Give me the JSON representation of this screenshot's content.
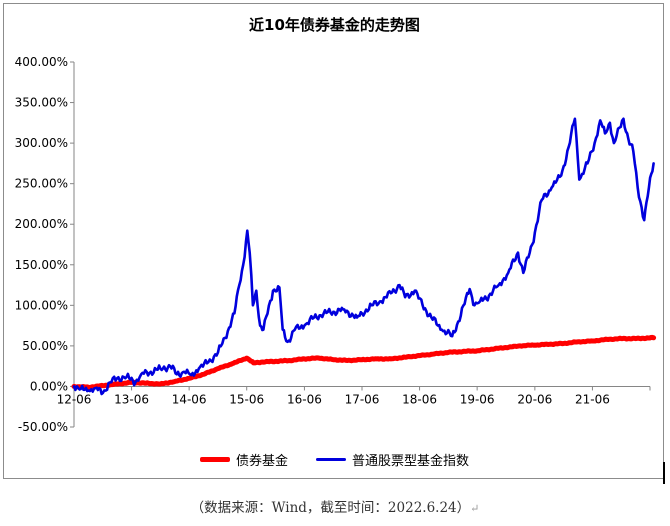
{
  "colors": {
    "bond": "#ff0000",
    "equity": "#0000dd",
    "axis": "#868686"
  },
  "legend": {
    "bond_label": "债券基金",
    "equity_label": "普通股票型基金指数"
  },
  "source_note": "（数据来源：Wind，截至时间：2022.6.24）",
  "return_mark": "↵",
  "chart_data": {
    "type": "line",
    "title": "近10年债券基金的走势图",
    "xlabel": "",
    "ylabel": "",
    "x_ticks": [
      "12-06",
      "13-06",
      "14-06",
      "15-06",
      "16-06",
      "17-06",
      "18-06",
      "19-06",
      "20-06",
      "21-06"
    ],
    "y_ticks": [
      "400.00%",
      "350.00%",
      "300.00%",
      "250.00%",
      "200.00%",
      "150.00%",
      "100.00%",
      "50.00%",
      "0.00%",
      "-50.00%"
    ],
    "ylim": [
      -50,
      400
    ],
    "xlim": [
      "2012-06",
      "2022-06"
    ],
    "grid": false,
    "legend_position": "bottom",
    "series": [
      {
        "name": "债券基金",
        "color": "#ff0000",
        "points": [
          [
            "2012-06-01",
            0
          ],
          [
            "2012-09-01",
            -1
          ],
          [
            "2012-12-01",
            1
          ],
          [
            "2013-03-01",
            3
          ],
          [
            "2013-06-01",
            5
          ],
          [
            "2013-09-01",
            4
          ],
          [
            "2013-12-01",
            3
          ],
          [
            "2014-03-01",
            6
          ],
          [
            "2014-06-01",
            10
          ],
          [
            "2014-09-01",
            15
          ],
          [
            "2014-12-01",
            22
          ],
          [
            "2015-03-01",
            28
          ],
          [
            "2015-06-01",
            35
          ],
          [
            "2015-07-15",
            29
          ],
          [
            "2015-09-01",
            30
          ],
          [
            "2015-12-01",
            31
          ],
          [
            "2016-03-01",
            32
          ],
          [
            "2016-06-01",
            34
          ],
          [
            "2016-09-01",
            35
          ],
          [
            "2016-12-01",
            33
          ],
          [
            "2017-03-01",
            32
          ],
          [
            "2017-06-01",
            33
          ],
          [
            "2017-09-01",
            34
          ],
          [
            "2017-12-01",
            34
          ],
          [
            "2018-03-01",
            36
          ],
          [
            "2018-06-01",
            38
          ],
          [
            "2018-09-01",
            40
          ],
          [
            "2018-12-01",
            42
          ],
          [
            "2019-03-01",
            43
          ],
          [
            "2019-06-01",
            44
          ],
          [
            "2019-09-01",
            46
          ],
          [
            "2019-12-01",
            48
          ],
          [
            "2020-03-01",
            50
          ],
          [
            "2020-06-01",
            51
          ],
          [
            "2020-09-01",
            52
          ],
          [
            "2020-12-01",
            53
          ],
          [
            "2021-03-01",
            55
          ],
          [
            "2021-06-01",
            56
          ],
          [
            "2021-09-01",
            58
          ],
          [
            "2021-12-01",
            59
          ],
          [
            "2022-03-01",
            59
          ],
          [
            "2022-06-24",
            60
          ]
        ]
      },
      {
        "name": "普通股票型基金指数",
        "color": "#0000dd",
        "points": [
          [
            "2012-06-01",
            0
          ],
          [
            "2012-07-15",
            -3
          ],
          [
            "2012-09-01",
            -5
          ],
          [
            "2012-10-15",
            -2
          ],
          [
            "2012-12-01",
            -8
          ],
          [
            "2013-01-15",
            5
          ],
          [
            "2013-03-01",
            10
          ],
          [
            "2013-05-01",
            12
          ],
          [
            "2013-06-25",
            5
          ],
          [
            "2013-08-01",
            15
          ],
          [
            "2013-10-01",
            18
          ],
          [
            "2013-12-01",
            22
          ],
          [
            "2014-02-01",
            25
          ],
          [
            "2014-03-15",
            15
          ],
          [
            "2014-05-01",
            18
          ],
          [
            "2014-06-15",
            14
          ],
          [
            "2014-08-01",
            22
          ],
          [
            "2014-10-01",
            30
          ],
          [
            "2014-12-01",
            42
          ],
          [
            "2015-01-15",
            60
          ],
          [
            "2015-03-15",
            90
          ],
          [
            "2015-04-15",
            125
          ],
          [
            "2015-05-10",
            150
          ],
          [
            "2015-06-05",
            192
          ],
          [
            "2015-06-20",
            165
          ],
          [
            "2015-07-10",
            100
          ],
          [
            "2015-08-01",
            118
          ],
          [
            "2015-08-25",
            75
          ],
          [
            "2015-09-15",
            70
          ],
          [
            "2015-11-15",
            118
          ],
          [
            "2015-12-25",
            122
          ],
          [
            "2016-01-15",
            70
          ],
          [
            "2016-02-15",
            55
          ],
          [
            "2016-04-01",
            70
          ],
          [
            "2016-06-01",
            75
          ],
          [
            "2016-08-01",
            85
          ],
          [
            "2016-10-01",
            90
          ],
          [
            "2016-12-01",
            92
          ],
          [
            "2017-02-01",
            95
          ],
          [
            "2017-05-01",
            85
          ],
          [
            "2017-06-01",
            90
          ],
          [
            "2017-08-01",
            100
          ],
          [
            "2017-10-01",
            105
          ],
          [
            "2017-12-01",
            115
          ],
          [
            "2018-01-25",
            125
          ],
          [
            "2018-03-01",
            110
          ],
          [
            "2018-05-01",
            118
          ],
          [
            "2018-06-20",
            100
          ],
          [
            "2018-08-15",
            85
          ],
          [
            "2018-10-20",
            70
          ],
          [
            "2018-12-25",
            62
          ],
          [
            "2019-02-01",
            80
          ],
          [
            "2019-04-15",
            120
          ],
          [
            "2019-05-15",
            100
          ],
          [
            "2019-06-20",
            105
          ],
          [
            "2019-08-15",
            112
          ],
          [
            "2019-10-15",
            125
          ],
          [
            "2019-12-15",
            140
          ],
          [
            "2020-02-15",
            165
          ],
          [
            "2020-03-20",
            140
          ],
          [
            "2020-05-15",
            175
          ],
          [
            "2020-07-15",
            230
          ],
          [
            "2020-09-15",
            245
          ],
          [
            "2020-11-15",
            260
          ],
          [
            "2021-01-01",
            295
          ],
          [
            "2021-02-10",
            330
          ],
          [
            "2021-03-10",
            255
          ],
          [
            "2021-05-01",
            275
          ],
          [
            "2021-06-15",
            300
          ],
          [
            "2021-07-20",
            328
          ],
          [
            "2021-08-20",
            312
          ],
          [
            "2021-09-20",
            325
          ],
          [
            "2021-10-15",
            300
          ],
          [
            "2021-12-15",
            330
          ],
          [
            "2022-01-15",
            305
          ],
          [
            "2022-02-15",
            290
          ],
          [
            "2022-03-15",
            245
          ],
          [
            "2022-04-25",
            205
          ],
          [
            "2022-05-25",
            245
          ],
          [
            "2022-06-24",
            275
          ]
        ]
      }
    ]
  }
}
